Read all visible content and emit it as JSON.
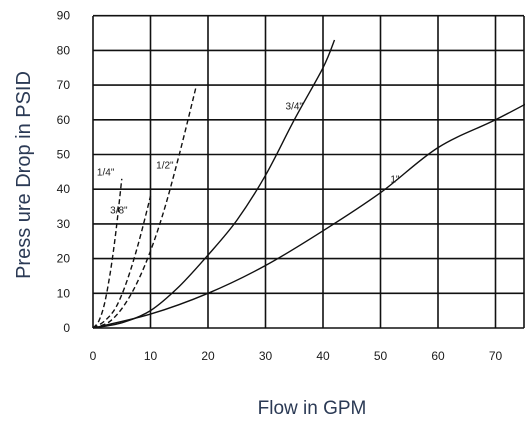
{
  "chart_data": {
    "type": "line",
    "title": "",
    "xlabel": "Flow in GPM",
    "ylabel": "Press ure Drop in PSID",
    "xlim": [
      0,
      78
    ],
    "ylim": [
      0,
      90
    ],
    "x_ticks": [
      0,
      10,
      20,
      30,
      40,
      50,
      60,
      70
    ],
    "y_ticks": [
      0,
      10,
      20,
      30,
      40,
      50,
      60,
      70,
      80,
      90
    ],
    "grid": true,
    "series": [
      {
        "name": "1/4\"",
        "dashed": true,
        "x": [
          0,
          1,
          2,
          3,
          4,
          5
        ],
        "y": [
          0,
          2,
          7,
          16,
          28,
          43
        ]
      },
      {
        "name": "3/8\"",
        "dashed": true,
        "x": [
          0,
          2,
          4,
          6,
          8,
          10
        ],
        "y": [
          0,
          2,
          6,
          14,
          25,
          38
        ]
      },
      {
        "name": "1/2\"",
        "dashed": true,
        "x": [
          0,
          3,
          6,
          9,
          12,
          15,
          18
        ],
        "y": [
          0,
          2,
          8,
          18,
          32,
          50,
          70
        ]
      },
      {
        "name": "3/4\"",
        "dashed": false,
        "x": [
          0,
          5,
          10,
          15,
          20,
          25,
          30,
          35,
          40,
          42
        ],
        "y": [
          0,
          1.5,
          5,
          12,
          21,
          31,
          44,
          60,
          75,
          83
        ]
      },
      {
        "name": "1\"",
        "dashed": false,
        "x": [
          0,
          10,
          20,
          30,
          40,
          50,
          60,
          70,
          78
        ],
        "y": [
          0,
          4,
          10,
          18,
          28,
          39,
          52,
          60,
          67
        ]
      }
    ],
    "curve_labels": [
      {
        "text": "1/4\"",
        "x": 2.2,
        "y": 44
      },
      {
        "text": "3/8\"",
        "x": 4.5,
        "y": 33
      },
      {
        "text": "1/2\"",
        "x": 12.5,
        "y": 46
      },
      {
        "text": "3/4\"",
        "x": 35,
        "y": 63
      },
      {
        "text": "1\"",
        "x": 52.5,
        "y": 42
      }
    ]
  }
}
